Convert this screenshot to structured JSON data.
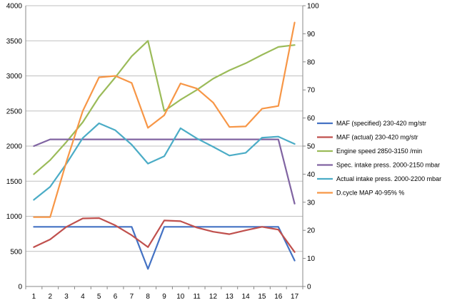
{
  "chart_data": {
    "type": "line",
    "title": "",
    "xlabel": "",
    "ylabel": "",
    "y2label": "",
    "x": [
      1,
      2,
      3,
      4,
      5,
      6,
      7,
      8,
      9,
      10,
      11,
      12,
      13,
      14,
      15,
      16,
      17
    ],
    "ylim": [
      0,
      4000
    ],
    "y2lim": [
      0,
      100
    ],
    "yticks": [
      "0",
      "500",
      "1000",
      "1500",
      "2000",
      "2500",
      "3000",
      "3500",
      "4000"
    ],
    "y2ticks": [
      "0",
      "10",
      "20",
      "30",
      "40",
      "50",
      "60",
      "70",
      "80",
      "90",
      "100"
    ],
    "grid": "horizontal",
    "legend_position": "right",
    "series": [
      {
        "name": "MAF (specified) 230-420  mg/str",
        "axis": "left",
        "color": "#4472c4",
        "values": [
          850,
          850,
          850,
          850,
          850,
          850,
          850,
          250,
          850,
          850,
          850,
          850,
          850,
          850,
          850,
          850,
          370
        ]
      },
      {
        "name": "MAF (actual) 230-420  mg/str",
        "axis": "left",
        "color": "#c0504d",
        "values": [
          560,
          670,
          850,
          970,
          975,
          870,
          730,
          560,
          940,
          930,
          840,
          780,
          745,
          800,
          850,
          810,
          490
        ]
      },
      {
        "name": "Engine speed 2850-3150  /min",
        "axis": "right",
        "color": "#9bbb59",
        "values": [
          40,
          45,
          51.5,
          58.5,
          67.5,
          74.5,
          82,
          87.5,
          62.5,
          66.5,
          70,
          74,
          77,
          79.5,
          82.5,
          85.3,
          86
        ]
      },
      {
        "name": "Spec. intake press. 2000-2150  mbar",
        "axis": "left",
        "color": "#8064a2",
        "values": [
          2000,
          2095,
          2095,
          2095,
          2095,
          2095,
          2095,
          2095,
          2095,
          2095,
          2095,
          2095,
          2095,
          2095,
          2095,
          2095,
          1180
        ]
      },
      {
        "name": "Actual intake press. 2000-2200  mbar",
        "axis": "left",
        "color": "#4bacc6",
        "values": [
          1235,
          1420,
          1750,
          2115,
          2325,
          2225,
          2020,
          1750,
          1855,
          2255,
          2110,
          1990,
          1865,
          1905,
          2120,
          2135,
          2030
        ]
      },
      {
        "name": "D.cycle MAP 40-95% %",
        "axis": "right",
        "color": "#f79646",
        "values": [
          24.7,
          24.7,
          44.5,
          62.5,
          74.5,
          75,
          72.5,
          56.5,
          61,
          72.3,
          70.5,
          65.5,
          56.8,
          57,
          63.3,
          64.3,
          94
        ]
      }
    ]
  }
}
